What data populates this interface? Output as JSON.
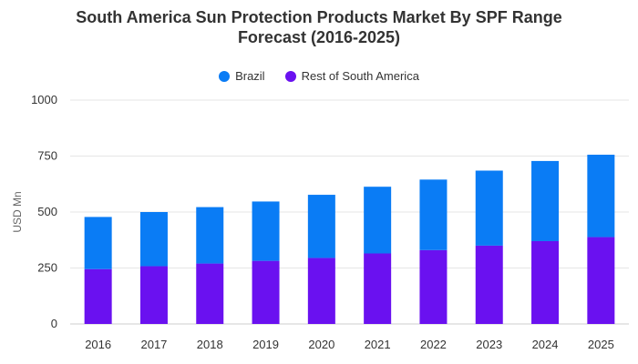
{
  "chart_data": {
    "type": "bar",
    "stacked": true,
    "title_line1": "South America Sun Protection Products Market By SPF Range",
    "title_line2": "Forecast (2016-2025)",
    "ylabel": "USD Mn",
    "xlabel": "",
    "ylim": [
      0,
      1000
    ],
    "yticks": [
      0,
      250,
      500,
      750,
      1000
    ],
    "grid": true,
    "legend_position": "top-center",
    "categories": [
      "2016",
      "2017",
      "2018",
      "2019",
      "2020",
      "2021",
      "2022",
      "2023",
      "2024",
      "2025"
    ],
    "series": [
      {
        "name": "Rest of South America",
        "color": "#6a11f0",
        "values": [
          245,
          258,
          270,
          282,
          295,
          315,
          330,
          350,
          370,
          388
        ]
      },
      {
        "name": "Brazil",
        "color": "#0a7cf5",
        "values": [
          233,
          242,
          252,
          265,
          282,
          298,
          315,
          335,
          358,
          368
        ]
      }
    ]
  },
  "legend": {
    "brazil": "Brazil",
    "rest": "Rest of South America"
  }
}
